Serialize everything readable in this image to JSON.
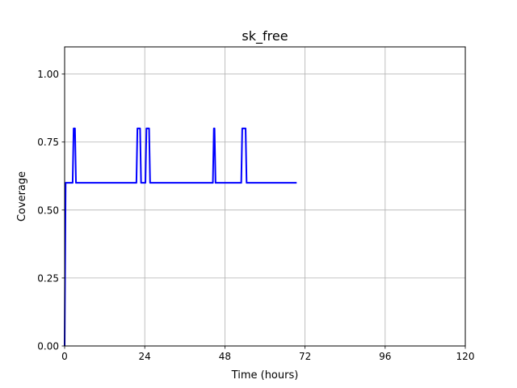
{
  "chart_data": {
    "type": "line",
    "title": "sk_free",
    "xlabel": "Time (hours)",
    "ylabel": "Coverage",
    "xlim": [
      0,
      120
    ],
    "ylim": [
      0,
      1.1
    ],
    "x_ticks": [
      0,
      24,
      48,
      72,
      96,
      120
    ],
    "x_tick_labels": [
      "0",
      "24",
      "48",
      "72",
      "96",
      "120"
    ],
    "y_ticks": [
      0.0,
      0.25,
      0.5,
      0.75,
      1.0
    ],
    "y_tick_labels": [
      "0.00",
      "0.25",
      "0.50",
      "0.75",
      "1.00"
    ],
    "grid": true,
    "series": [
      {
        "color": "#0000ff",
        "x": [
          0,
          0.3,
          2.4,
          2.7,
          3.1,
          3.4,
          21.5,
          21.8,
          22.6,
          22.9,
          23.3,
          23.6,
          24.2,
          24.5,
          25.3,
          25.6,
          44.4,
          44.7,
          44.9,
          45.2,
          52.9,
          53.2,
          54.2,
          54.5,
          69.5
        ],
        "y": [
          0,
          0.6,
          0.6,
          0.8,
          0.8,
          0.6,
          0.6,
          0.8,
          0.8,
          0.6,
          0.6,
          0.6,
          0.6,
          0.8,
          0.8,
          0.6,
          0.6,
          0.8,
          0.8,
          0.6,
          0.6,
          0.8,
          0.8,
          0.6,
          0.6
        ]
      }
    ]
  }
}
